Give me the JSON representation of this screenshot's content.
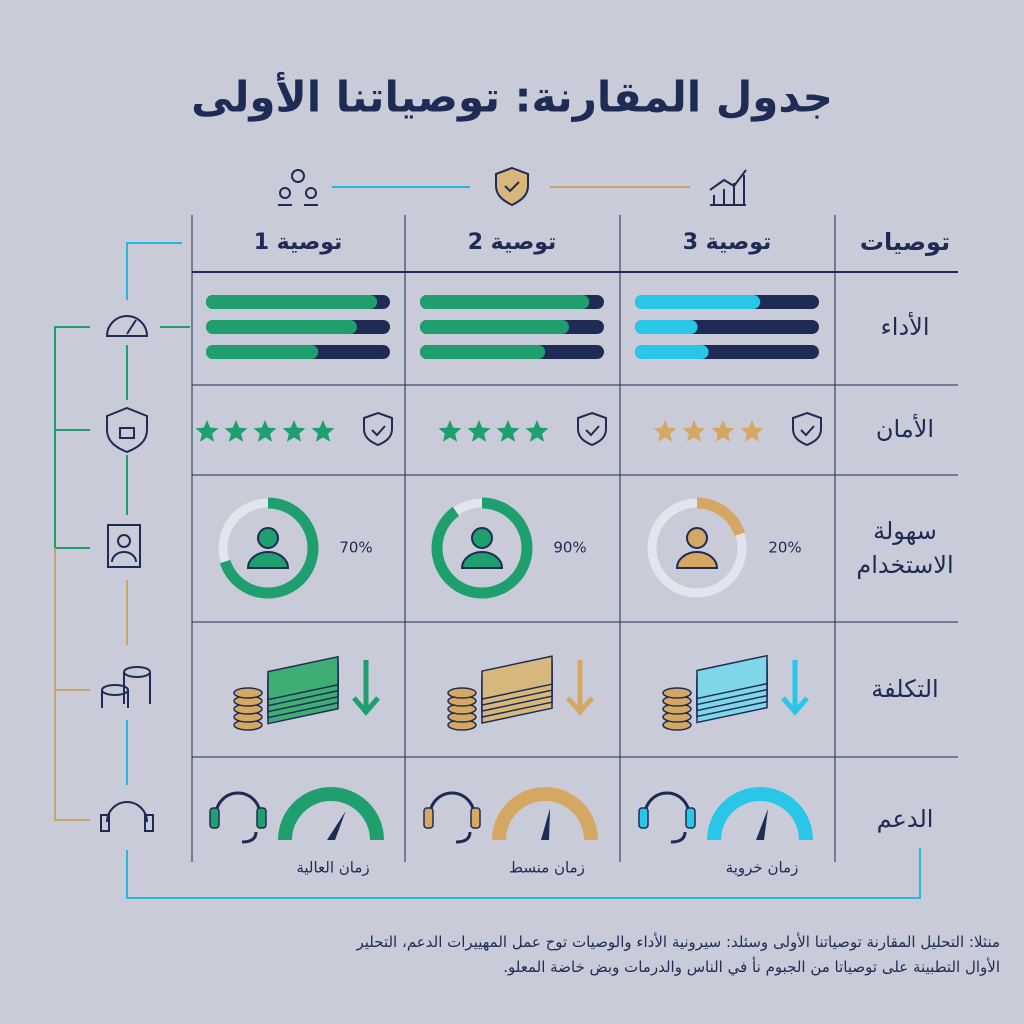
{
  "title": "جدول المقارنة: توصياتنا الأولى",
  "header": "توصيات",
  "row_labels": {
    "performance": "الأداء",
    "security": "الأمان",
    "usability": [
      "سهولة",
      "الاستخدام"
    ],
    "cost": "التكلفة",
    "support": "الدعم"
  },
  "recommendations": [
    {
      "name": "توصية 1",
      "performance": [
        93,
        82,
        61
      ],
      "security_stars": 5,
      "usability": {
        "value": 70,
        "label": "70%"
      },
      "support_gauge": 65,
      "support_label": "زمان العالية"
    },
    {
      "name": "توصية 2",
      "performance": [
        92,
        81,
        68
      ],
      "security_stars": 4,
      "usability": {
        "value": 90,
        "label": "90%"
      },
      "support_gauge": 55,
      "support_label": "زمان منسط"
    },
    {
      "name": "توصية 3",
      "performance": [
        68,
        34,
        40
      ],
      "security_stars": 4,
      "usability": {
        "value": 20,
        "label": "20%"
      },
      "support_gauge": 58,
      "support_label": "زمان خروية"
    }
  ],
  "footnote": [
    "منثلا: التحليل المقارنة توصياتنا الأولى وسئلد: سيرونية الأداء والوصيات توح عمل المهييرات الدعم، التحلير",
    "الأوال التطبينة على توصياتا من الجبوم نأ في الناس والدرمات وبض خاضة المعلو."
  ]
}
